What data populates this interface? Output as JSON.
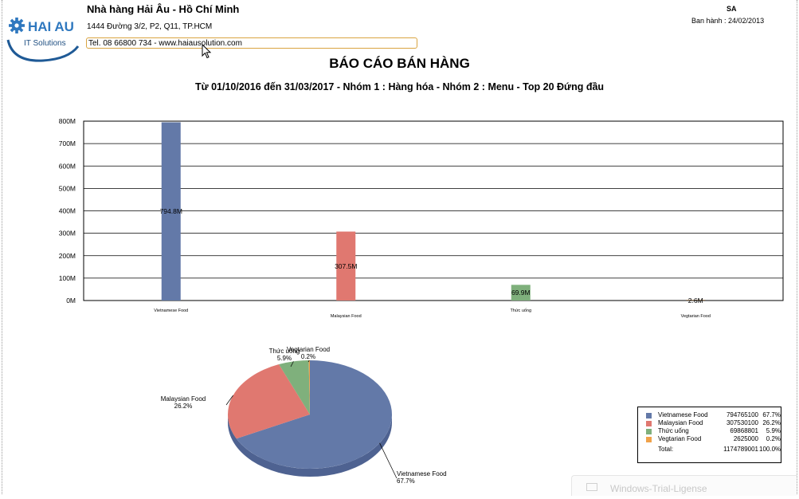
{
  "header": {
    "logo_text": "HAI AU",
    "logo_subtext": "IT Solutions",
    "company_name": "Nhà hàng Hải Âu - Hồ Chí Minh",
    "company_address": "1444 Đường 3/2, P2, Q11, TP.HCM",
    "company_contact": "Tel. 08 66800 734 - www.haiausolution.com",
    "user_code": "SA",
    "issue_date": "Ban hành : 24/02/2013"
  },
  "report": {
    "title": "BÁO CÁO BÁN HÀNG",
    "subtitle": "Từ 01/10/2016 đến 31/03/2017 - Nhóm 1 : Hàng hóa - Nhóm 2 : Menu - Top 20 Đứng đầu"
  },
  "colors": {
    "vietnamese": "#6379a8",
    "malaysian": "#e07870",
    "drinks": "#7fb07c",
    "vegetarian": "#f0a24a",
    "pie_side": "#4e6291",
    "contact_border": "#d9a441"
  },
  "chart_data": [
    {
      "type": "bar",
      "categories": [
        "Vietnamese Food",
        "Malaysian Food",
        "Thức uống",
        "Vegtarian Food"
      ],
      "values": [
        794.8,
        307.5,
        69.9,
        2.6
      ],
      "data_labels": [
        "794.8M",
        "307.5M",
        "69.9M",
        "2.6M"
      ],
      "ylim": [
        0,
        800
      ],
      "yticks": [
        0,
        100,
        200,
        300,
        400,
        500,
        600,
        700,
        800
      ],
      "ytick_labels": [
        "0M",
        "100M",
        "200M",
        "300M",
        "400M",
        "500M",
        "600M",
        "700M",
        "800M"
      ],
      "grid": true
    },
    {
      "type": "pie",
      "categories": [
        "Vietnamese Food",
        "Malaysian Food",
        "Thức uống",
        "Vegtarian Food"
      ],
      "values": [
        794765100,
        307530100,
        69868801,
        2625000
      ],
      "value_labels": [
        "794765100",
        "307530100",
        "69868801",
        "2625000"
      ],
      "percent_labels": [
        "67.7%",
        "26.2%",
        "5.9%",
        "0.2%"
      ],
      "legend_placement": "bottom-right",
      "total_label": "Total:",
      "total_value": "1174789001",
      "total_percent": "100.0%"
    }
  ],
  "os_overlay": {
    "text": "Windows-Trial-Ligense"
  }
}
